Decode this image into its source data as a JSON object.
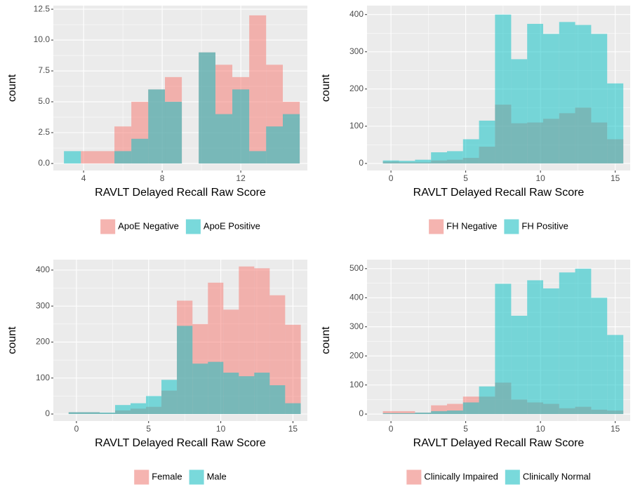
{
  "chart_data": [
    {
      "type": "histogram",
      "x_label": "RAVLT Delayed Recall Raw Score",
      "y_label": "count",
      "bins": [
        3.0,
        3.86,
        4.71,
        5.57,
        6.43,
        7.29,
        8.14,
        9.0,
        9.86,
        10.71,
        11.57,
        12.43,
        13.29,
        14.14,
        15.0
      ],
      "series": [
        {
          "name": "ApoE Negative",
          "color": "#F8766D",
          "values": [
            0,
            1,
            1,
            3,
            5,
            6,
            7,
            0,
            9,
            8,
            7,
            12,
            8,
            5
          ]
        },
        {
          "name": "ApoE Positive",
          "color": "#00BFC4",
          "values": [
            1,
            0,
            0,
            1,
            2,
            6,
            5,
            0,
            9,
            4,
            6,
            1,
            3,
            4
          ]
        }
      ],
      "alpha": 0.5,
      "xlim": [
        2.46,
        15.39
      ],
      "xticks": [
        4,
        8,
        12
      ],
      "ylim": [
        -0.57,
        12.79
      ],
      "yticks": [
        {
          "value": 0,
          "label": "0.0"
        },
        2.5,
        {
          "value": 5,
          "label": "5.0"
        },
        7.5,
        {
          "value": 10,
          "label": "10.0"
        },
        12.5
      ],
      "grid": true,
      "legend": "bottom"
    },
    {
      "type": "histogram",
      "x_label": "RAVLT Delayed Recall Raw Score",
      "y_label": "count",
      "bins": [
        -0.54,
        0.54,
        1.61,
        2.68,
        3.75,
        4.82,
        5.89,
        6.96,
        8.04,
        9.11,
        10.18,
        11.25,
        12.32,
        13.39,
        14.46,
        15.54
      ],
      "series": [
        {
          "name": "FH Negative",
          "color": "#F8766D",
          "values": [
            5,
            3,
            3,
            8,
            10,
            15,
            45,
            158,
            108,
            110,
            120,
            135,
            150,
            110,
            65
          ]
        },
        {
          "name": "FH Positive",
          "color": "#00BFC4",
          "values": [
            8,
            7,
            10,
            30,
            33,
            65,
            115,
            400,
            280,
            375,
            348,
            380,
            372,
            348,
            215
          ]
        }
      ],
      "alpha": 0.5,
      "xlim": [
        -1.6,
        16.0
      ],
      "xticks": [
        0,
        5,
        10,
        15
      ],
      "ylim": [
        -19,
        424
      ],
      "yticks": [
        0,
        100,
        200,
        300,
        400
      ],
      "grid": true,
      "legend": "bottom"
    },
    {
      "type": "histogram",
      "x_label": "RAVLT Delayed Recall Raw Score",
      "y_label": "count",
      "bins": [
        -0.54,
        0.54,
        1.61,
        2.68,
        3.75,
        4.82,
        5.89,
        6.96,
        8.04,
        9.11,
        10.18,
        11.25,
        12.32,
        13.39,
        14.46,
        15.54
      ],
      "series": [
        {
          "name": "Female",
          "color": "#F8766D",
          "values": [
            5,
            5,
            3,
            10,
            15,
            20,
            65,
            315,
            250,
            365,
            290,
            410,
            405,
            330,
            248
          ]
        },
        {
          "name": "Male",
          "color": "#00BFC4",
          "values": [
            5,
            5,
            4,
            25,
            30,
            50,
            95,
            245,
            140,
            145,
            115,
            105,
            115,
            80,
            30
          ]
        }
      ],
      "alpha": 0.5,
      "xlim": [
        -1.6,
        16.0
      ],
      "xticks": [
        0,
        5,
        10,
        15
      ],
      "ylim": [
        -19.5,
        429
      ],
      "yticks": [
        0,
        100,
        200,
        300,
        400
      ],
      "grid": true,
      "legend": "bottom"
    },
    {
      "type": "histogram",
      "x_label": "RAVLT Delayed Recall Raw Score",
      "y_label": "count",
      "bins": [
        -0.54,
        0.54,
        1.61,
        2.68,
        3.75,
        4.82,
        5.89,
        6.96,
        8.04,
        9.11,
        10.18,
        11.25,
        12.32,
        13.39,
        14.46,
        15.54
      ],
      "series": [
        {
          "name": "Clinically Impaired",
          "color": "#F8766D",
          "values": [
            10,
            10,
            5,
            30,
            35,
            60,
            60,
            108,
            50,
            40,
            35,
            20,
            25,
            15,
            12
          ]
        },
        {
          "name": "Clinically Normal",
          "color": "#00BFC4",
          "values": [
            3,
            3,
            5,
            10,
            12,
            40,
            95,
            448,
            338,
            460,
            432,
            487,
            500,
            400,
            272
          ]
        }
      ],
      "alpha": 0.5,
      "xlim": [
        -1.6,
        16.0
      ],
      "xticks": [
        0,
        5,
        10,
        15
      ],
      "ylim": [
        -24,
        531
      ],
      "yticks": [
        0,
        100,
        200,
        300,
        400,
        500
      ],
      "grid": true,
      "legend": "bottom"
    }
  ]
}
